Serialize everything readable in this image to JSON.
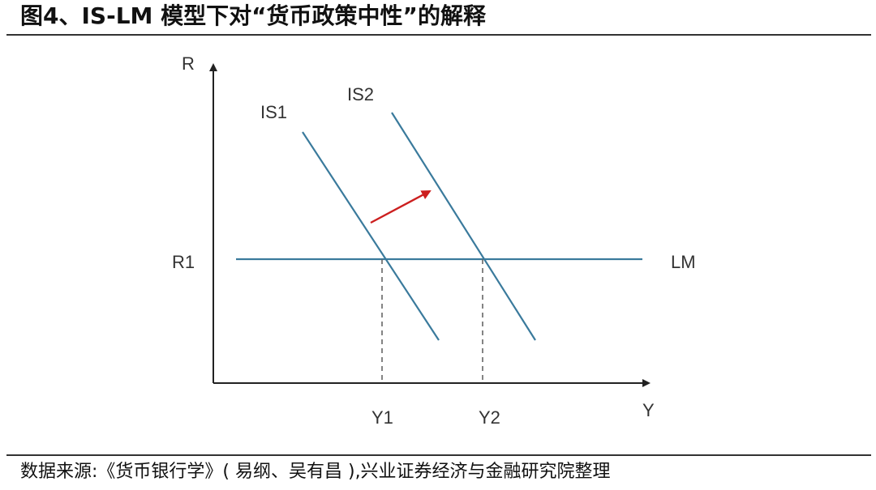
{
  "header": {
    "title": "图4、IS-LM 模型下对“货币政策中性”的解释"
  },
  "diagram": {
    "y_axis_label": "R",
    "x_axis_label": "Y",
    "curves": {
      "is1": "IS1",
      "is2": "IS2",
      "lm": "LM"
    },
    "levels": {
      "r1": "R1",
      "y1": "Y1",
      "y2": "Y2"
    },
    "colors": {
      "curve": "#3a7a9c",
      "arrow": "#cc1f1f",
      "axis": "#222222",
      "dashed": "#666666"
    }
  },
  "footer": {
    "source": "数据来源:《货币银行学》( 易纲、吴有昌 ),兴业证券经济与金融研究院整理"
  }
}
